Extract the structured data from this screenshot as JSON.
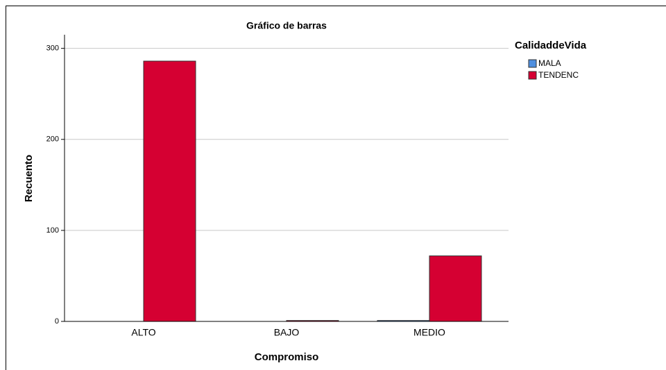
{
  "chart_data": {
    "type": "bar",
    "title": "Gráfico de barras",
    "x_label": "Compromiso",
    "y_label": "Recuento",
    "legend_title": "CalidaddeVida",
    "legend": "right",
    "categories": [
      "ALTO",
      "BAJO",
      "MEDIO"
    ],
    "series": [
      {
        "name": "MALA",
        "color": "#4f8fdf",
        "values": [
          0,
          0,
          1
        ]
      },
      {
        "name": "TENDENC",
        "color": "#d50032",
        "values": [
          286,
          1,
          72
        ]
      }
    ],
    "ylim": [
      0,
      315
    ],
    "yticks": [
      0,
      100,
      200,
      300
    ],
    "grid": true
  }
}
